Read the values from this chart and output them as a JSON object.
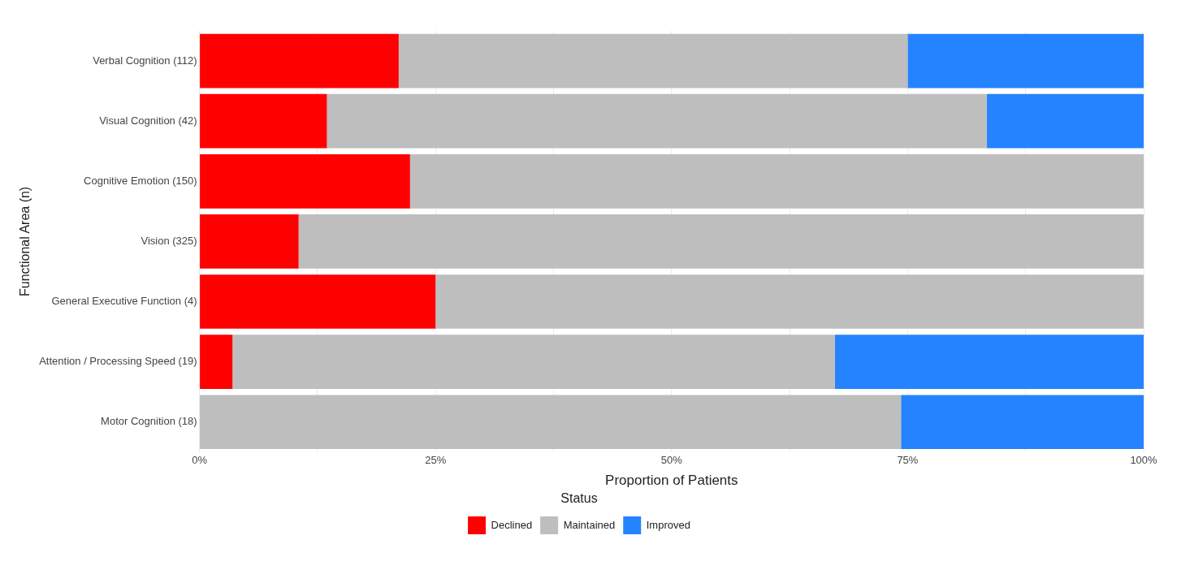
{
  "chart_data": {
    "type": "bar",
    "orientation": "horizontal",
    "stacked": true,
    "xlabel": "Proportion of Patients",
    "ylabel": "Functional Area (n)",
    "legend_title": "Status",
    "legend": "bottom",
    "grid": true,
    "categories": [
      "Verbal Cognition (112)",
      "Visual Cognition (42)",
      "Cognitive Emotion (150)",
      "Vision (325)",
      "General Executive Function (4)",
      "Attention / Processing Speed (19)",
      "Motor Cognition (18)"
    ],
    "series": [
      {
        "name": "Declined",
        "color": "#ff0000",
        "values": [
          21.1,
          13.5,
          22.3,
          10.5,
          25.0,
          3.5,
          0
        ]
      },
      {
        "name": "Maintained",
        "color": "#bebebe",
        "values": [
          53.9,
          69.9,
          77.7,
          89.5,
          75.0,
          63.8,
          74.3
        ]
      },
      {
        "name": "Improved",
        "color": "#2583ff",
        "values": [
          25.0,
          16.6,
          0,
          0,
          0,
          32.7,
          25.7
        ]
      }
    ],
    "xlim": [
      0,
      100
    ],
    "xticks": [
      {
        "value": 0,
        "label": "0%"
      },
      {
        "value": 12.5,
        "label": null
      },
      {
        "value": 25,
        "label": "25%"
      },
      {
        "value": 37.5,
        "label": null
      },
      {
        "value": 50,
        "label": "50%"
      },
      {
        "value": 62.5,
        "label": null
      },
      {
        "value": 75,
        "label": "75%"
      },
      {
        "value": 87.5,
        "label": null
      },
      {
        "value": 100,
        "label": "100%"
      }
    ]
  }
}
